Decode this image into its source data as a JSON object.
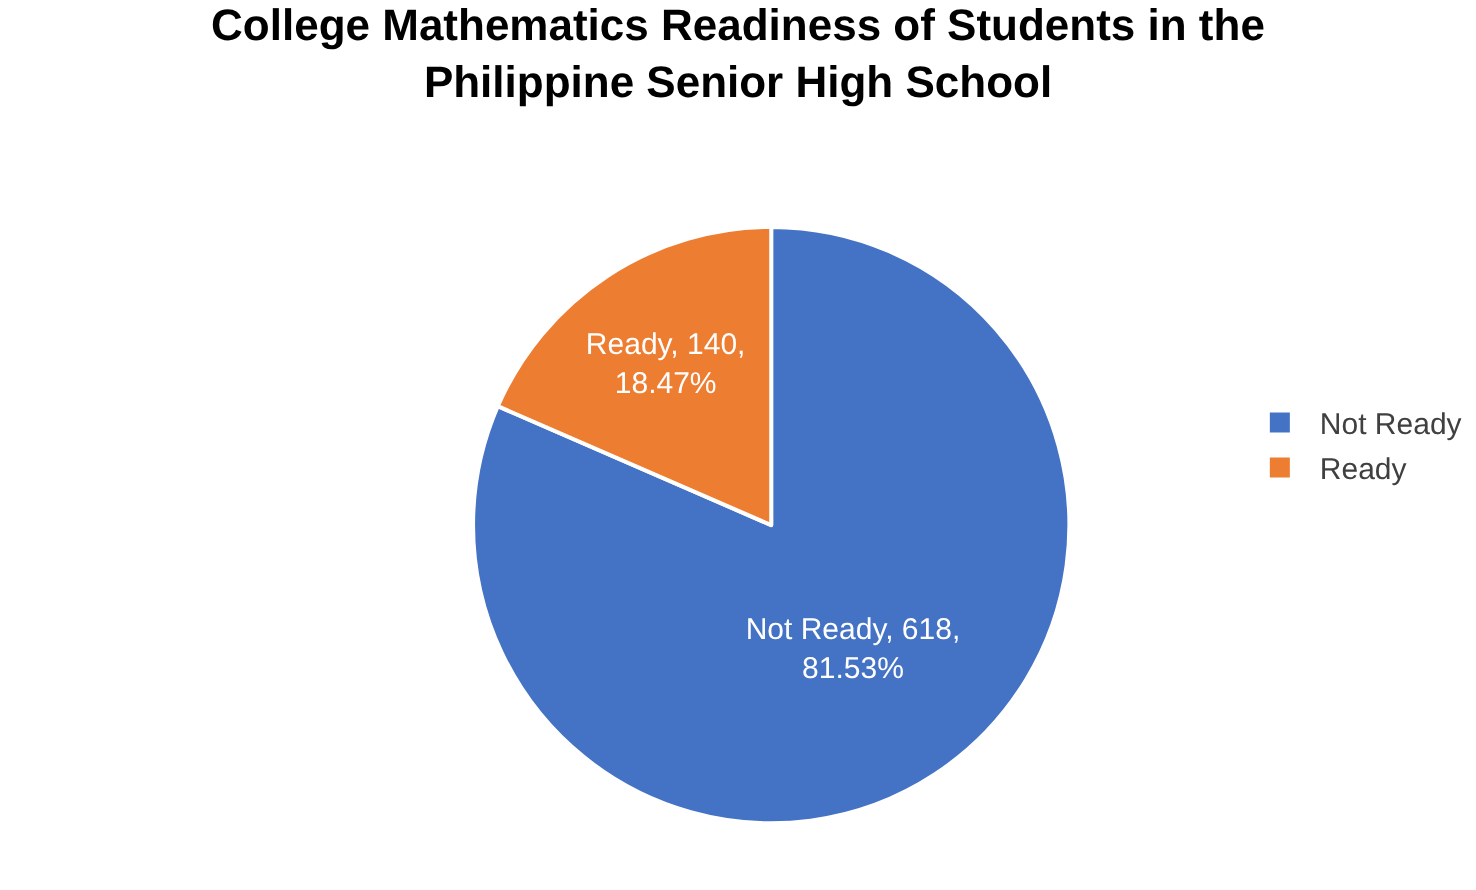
{
  "chart_data": {
    "type": "pie",
    "title": "College Mathematics Readiness of Students in the Philippine Senior High School",
    "categories": [
      "Not Ready",
      "Ready"
    ],
    "values": [
      618,
      140
    ],
    "colors": [
      "#4472c4",
      "#ed7d31"
    ],
    "value_labels": [
      "Not Ready, 618, 81.53%",
      "Ready, 140, 18.47%"
    ],
    "legend": "right"
  }
}
